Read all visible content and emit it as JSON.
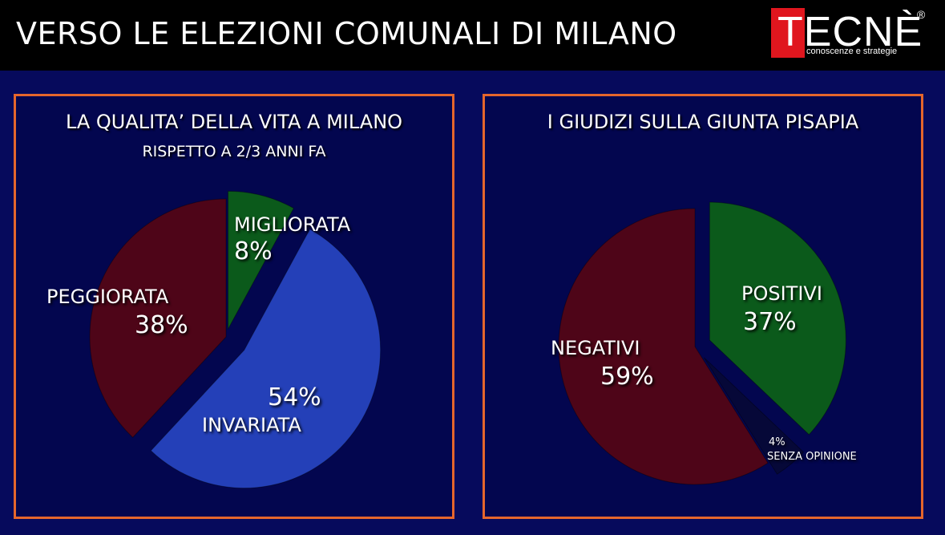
{
  "header": {
    "title": "VERSO LE ELEZIONI COMUNALI DI MILANO",
    "logo": {
      "name": "TECNÈ",
      "registered": "®",
      "tagline": "conoscenze e strategie"
    }
  },
  "colors": {
    "background": "#060a5c",
    "panel_border": "#e5662c",
    "green": "#0b5a1b",
    "red": "#4e0518",
    "blue": "#2440b8",
    "dark": "#060838"
  },
  "chart_data": [
    {
      "type": "pie",
      "title": "LA QUALITA’ DELLA VITA A MILANO",
      "subtitle": "RISPETTO A 2/3 ANNI FA",
      "slices": [
        {
          "label": "MIGLIORATA",
          "value": 8,
          "display": "8%",
          "color": "#0b5a1b"
        },
        {
          "label": "INVARIATA",
          "value": 54,
          "display": "54%",
          "color": "#2440b8"
        },
        {
          "label": "PEGGIORATA",
          "value": 38,
          "display": "38%",
          "color": "#4e0518"
        }
      ]
    },
    {
      "type": "pie",
      "title": "I GIUDIZI SULLA GIUNTA PISAPIA",
      "subtitle": "",
      "slices": [
        {
          "label": "POSITIVI",
          "value": 37,
          "display": "37%",
          "color": "#0b5a1b"
        },
        {
          "label": "SENZA OPINIONE",
          "value": 4,
          "display": "4%",
          "color": "#060838"
        },
        {
          "label": "NEGATIVI",
          "value": 59,
          "display": "59%",
          "color": "#4e0518"
        }
      ]
    }
  ]
}
